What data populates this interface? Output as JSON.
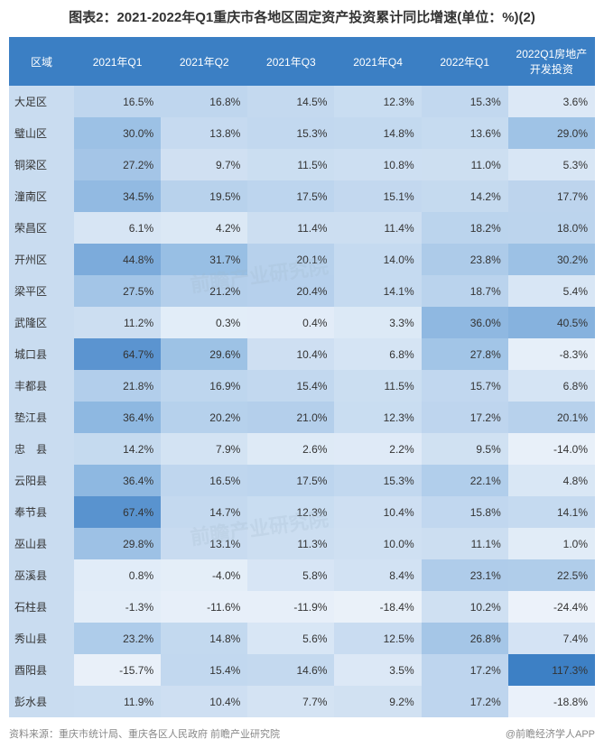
{
  "title": "图表2：2021-2022年Q1重庆市各地区固定资产投资累计同比增速(单位：%)(2)",
  "columns": [
    "区域",
    "2021年Q1",
    "2021年Q2",
    "2021年Q3",
    "2021年Q4",
    "2022年Q1",
    "2022Q1房地产开发投资"
  ],
  "header_bg": "#3b7fc4",
  "header_color": "#ffffff",
  "region_col_bg": "#c9dcf0",
  "color_scale": {
    "min": -25,
    "max": 120,
    "stops": [
      {
        "v": -25,
        "c": "#ecf2fa"
      },
      {
        "v": 0,
        "c": "#e3edf8"
      },
      {
        "v": 10,
        "c": "#cfe0f2"
      },
      {
        "v": 20,
        "c": "#b7d1ec"
      },
      {
        "v": 30,
        "c": "#9cc1e5"
      },
      {
        "v": 45,
        "c": "#7cabdb"
      },
      {
        "v": 65,
        "c": "#5a94d0"
      },
      {
        "v": 120,
        "c": "#3b7fc4"
      }
    ]
  },
  "rows": [
    {
      "region": "大足区",
      "v": [
        16.5,
        16.8,
        14.5,
        12.3,
        15.3,
        3.6
      ]
    },
    {
      "region": "璧山区",
      "v": [
        30.0,
        13.8,
        15.3,
        14.8,
        13.6,
        29.0
      ]
    },
    {
      "region": "铜梁区",
      "v": [
        27.2,
        9.7,
        11.5,
        10.8,
        11.0,
        5.3
      ]
    },
    {
      "region": "潼南区",
      "v": [
        34.5,
        19.5,
        17.5,
        15.1,
        14.2,
        17.7
      ]
    },
    {
      "region": "荣昌区",
      "v": [
        6.1,
        4.2,
        11.4,
        11.4,
        18.2,
        18.0
      ]
    },
    {
      "region": "开州区",
      "v": [
        44.8,
        31.7,
        20.1,
        14.0,
        23.8,
        30.2
      ]
    },
    {
      "region": "梁平区",
      "v": [
        27.5,
        21.2,
        20.4,
        14.1,
        18.7,
        5.4
      ]
    },
    {
      "region": "武隆区",
      "v": [
        11.2,
        0.3,
        0.4,
        3.3,
        36.0,
        40.5
      ]
    },
    {
      "region": "城口县",
      "v": [
        64.7,
        29.6,
        10.4,
        6.8,
        27.8,
        -8.3
      ]
    },
    {
      "region": "丰都县",
      "v": [
        21.8,
        16.9,
        15.4,
        11.5,
        15.7,
        6.8
      ]
    },
    {
      "region": "垫江县",
      "v": [
        36.4,
        20.2,
        21.0,
        12.3,
        17.2,
        20.1
      ]
    },
    {
      "region": "忠　县",
      "v": [
        14.2,
        7.9,
        2.6,
        2.2,
        9.5,
        -14.0
      ]
    },
    {
      "region": "云阳县",
      "v": [
        36.4,
        16.5,
        17.5,
        15.3,
        22.1,
        4.8
      ]
    },
    {
      "region": "奉节县",
      "v": [
        67.4,
        14.7,
        12.3,
        10.4,
        15.8,
        14.1
      ]
    },
    {
      "region": "巫山县",
      "v": [
        29.8,
        13.1,
        11.3,
        10.0,
        11.1,
        1.0
      ]
    },
    {
      "region": "巫溪县",
      "v": [
        0.8,
        -4.0,
        5.8,
        8.4,
        23.1,
        22.5
      ]
    },
    {
      "region": "石柱县",
      "v": [
        -1.3,
        -11.6,
        -11.9,
        -18.4,
        10.2,
        -24.4
      ]
    },
    {
      "region": "秀山县",
      "v": [
        23.2,
        14.8,
        5.6,
        12.5,
        26.8,
        7.4
      ]
    },
    {
      "region": "酉阳县",
      "v": [
        -15.7,
        15.4,
        14.6,
        3.5,
        17.2,
        117.3
      ]
    },
    {
      "region": "彭水县",
      "v": [
        11.9,
        10.4,
        7.7,
        9.2,
        17.2,
        -18.8
      ]
    }
  ],
  "footer_left": "资料来源：重庆市统计局、重庆各区人民政府 前瞻产业研究院",
  "footer_right": "@前瞻经济学人APP",
  "watermark_text": "前瞻产业研究院"
}
